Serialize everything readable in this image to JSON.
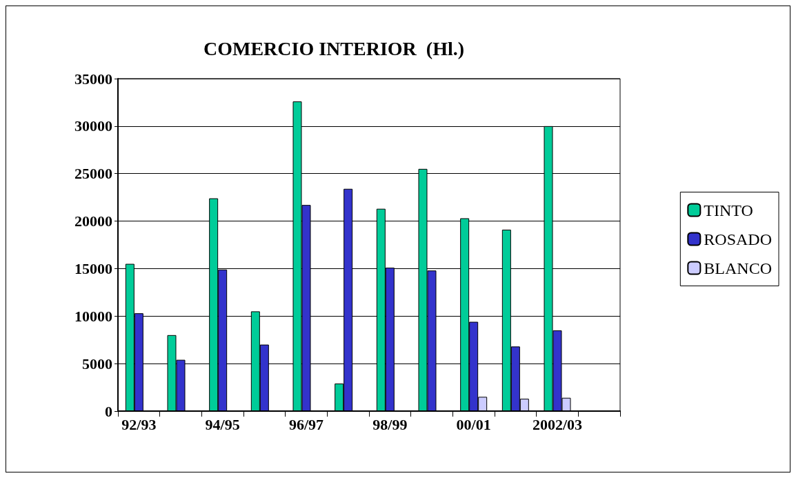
{
  "chart_data": {
    "type": "bar",
    "title": "COMERCIO INTERIOR  (Hl.)",
    "categories": [
      "92/93",
      null,
      "94/95",
      null,
      "96/97",
      null,
      "98/99",
      null,
      "00/01",
      null,
      "2002/03",
      null
    ],
    "series": [
      {
        "name": "TINTO",
        "color": "#00cc99",
        "values": [
          15500,
          8000,
          22400,
          10500,
          32600,
          2900,
          21300,
          25500,
          20300,
          19100,
          30000,
          null
        ]
      },
      {
        "name": "ROSADO",
        "color": "#3333cc",
        "values": [
          10300,
          5400,
          14900,
          7000,
          21700,
          23400,
          15100,
          14800,
          9400,
          6800,
          8500,
          null
        ]
      },
      {
        "name": "BLANCO",
        "color": "#ccccff",
        "values": [
          null,
          null,
          null,
          null,
          null,
          null,
          null,
          null,
          1500,
          1300,
          1400,
          null
        ]
      }
    ],
    "ylim": [
      0,
      35000
    ],
    "yticks": [
      0,
      5000,
      10000,
      15000,
      20000,
      25000,
      30000,
      35000
    ],
    "grid": "y",
    "legend": "right"
  }
}
